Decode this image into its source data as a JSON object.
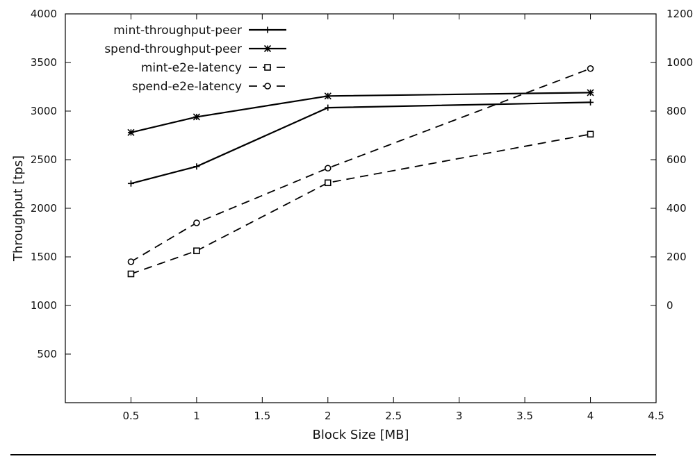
{
  "chart_data": {
    "type": "line",
    "xlabel": "Block Size [MB]",
    "ylabel": "Throughput [tps]",
    "y2label": "",
    "xlim": [
      0,
      4.5
    ],
    "ylim": [
      0,
      4000
    ],
    "y2lim": [
      -400,
      1200
    ],
    "x_ticks": [
      0.5,
      1,
      1.5,
      2,
      2.5,
      3,
      3.5,
      4,
      4.5
    ],
    "x_tick_labels": [
      "0.5",
      "1",
      "1.5",
      "2",
      "2.5",
      "3",
      "3.5",
      "4",
      "4.5"
    ],
    "y_ticks": [
      500,
      1000,
      1500,
      2000,
      2500,
      3000,
      3500,
      4000
    ],
    "y_tick_labels": [
      "500",
      "1000",
      "1500",
      "2000",
      "2500",
      "3000",
      "3500",
      "4000"
    ],
    "y2_ticks": [
      0,
      200,
      400,
      600,
      800,
      1000,
      1200
    ],
    "y2_tick_labels": [
      "0",
      "200",
      "400",
      "600",
      "800",
      "1000",
      "1200"
    ],
    "grid": false,
    "legend_position": "top-left",
    "x": [
      0.5,
      1,
      2,
      4
    ],
    "series": [
      {
        "name": "mint-throughput-peer",
        "axis": "left",
        "values": [
          2255,
          2430,
          3035,
          3090
        ],
        "dash": "solid",
        "marker": "plus"
      },
      {
        "name": "spend-throughput-peer",
        "axis": "left",
        "values": [
          2780,
          2940,
          3155,
          3190
        ],
        "dash": "solid",
        "marker": "star"
      },
      {
        "name": "mint-e2e-latency",
        "axis": "right",
        "values": [
          130,
          225,
          505,
          705
        ],
        "dash": "dashed",
        "marker": "square"
      },
      {
        "name": "spend-e2e-latency",
        "axis": "right",
        "values": [
          180,
          340,
          565,
          975
        ],
        "dash": "dashed",
        "marker": "circle"
      }
    ],
    "colors": {
      "line": "#000000",
      "axis": "#000000"
    }
  }
}
